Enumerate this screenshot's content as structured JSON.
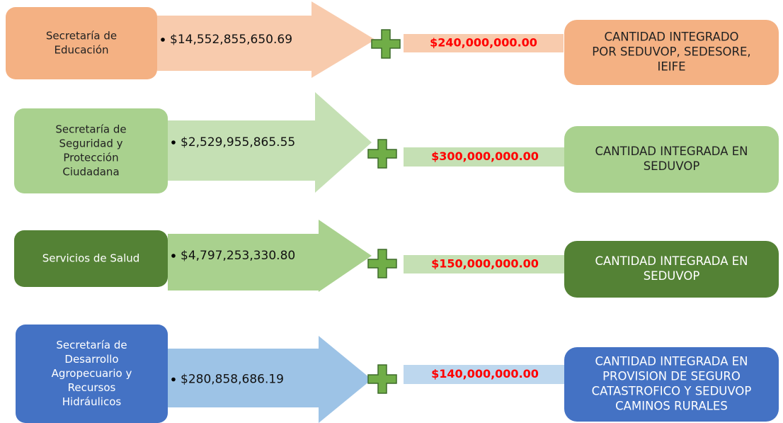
{
  "rows": [
    {
      "agency": [
        "Secretaría de",
        "Educación"
      ],
      "amount": "$14,552,855,650.69",
      "addition": "$240,000,000.00",
      "result": [
        "CANTIDAD INTEGRADO",
        "POR SEDUVOP, SEDESORE,",
        "IEIFE"
      ]
    },
    {
      "agency": [
        "Secretaría de",
        "Seguridad y",
        "Protección",
        "Ciudadana"
      ],
      "amount": "$2,529,955,865.55",
      "addition": "$300,000,000.00",
      "result": [
        "CANTIDAD INTEGRADA EN",
        "SEDUVOP"
      ]
    },
    {
      "agency": [
        "Servicios de Salud"
      ],
      "amount": "$4,797,253,330.80",
      "addition": "$150,000,000.00",
      "result": [
        "CANTIDAD INTEGRADA EN",
        "SEDUVOP"
      ]
    },
    {
      "agency": [
        "Secretaría de",
        "Desarrollo",
        "Agropecuario y",
        "Recursos",
        "Hidráulicos"
      ],
      "amount": "$280,858,686.19",
      "addition": "$140,000,000.00",
      "result": [
        "CANTIDAD INTEGRADA EN",
        "PROVISION DE SEGURO",
        "CATASTROFICO Y SEDUVOP",
        "CAMINOS RURALES"
      ]
    }
  ]
}
